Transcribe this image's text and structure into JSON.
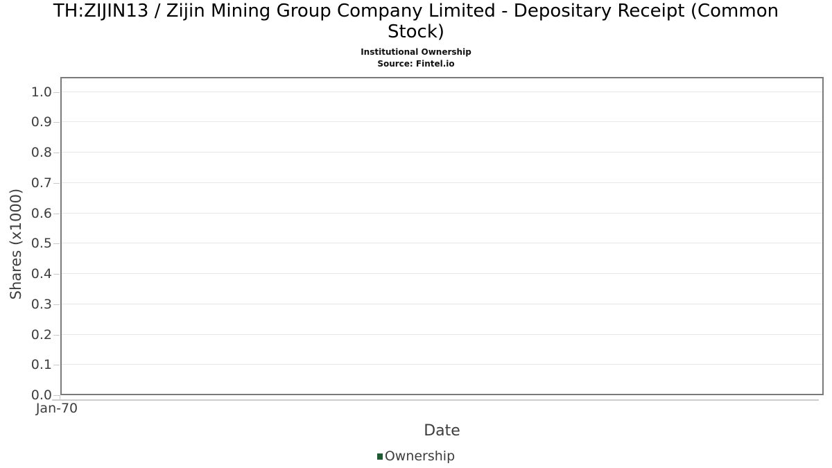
{
  "chart_data": {
    "type": "line",
    "title": "TH:ZIJIN13 / Zijin Mining Group Company Limited - Depositary Receipt (Common Stock)",
    "subtitle": "Institutional Ownership",
    "source": "Source: Fintel.io",
    "xlabel": "Date",
    "ylabel": "Shares (x1000)",
    "ylim": [
      0.0,
      1.05
    ],
    "yticks": [
      "0.0",
      "0.1",
      "0.2",
      "0.3",
      "0.4",
      "0.5",
      "0.6",
      "0.7",
      "0.8",
      "0.9",
      "1.0"
    ],
    "xticks": [
      "Jan-70"
    ],
    "grid": true,
    "legend": {
      "position": "bottom",
      "entries": [
        {
          "label": "Ownership",
          "color": "#1e5a32"
        }
      ]
    },
    "series": [
      {
        "name": "Ownership",
        "x": [],
        "y": []
      }
    ]
  },
  "colors": {
    "plot_border": "#7a7a7a",
    "gridline": "#e7e7e7",
    "tick_mark": "#c9c9c9",
    "axis_text": "#3d3d3d",
    "ownership_green": "#1e5a32"
  }
}
